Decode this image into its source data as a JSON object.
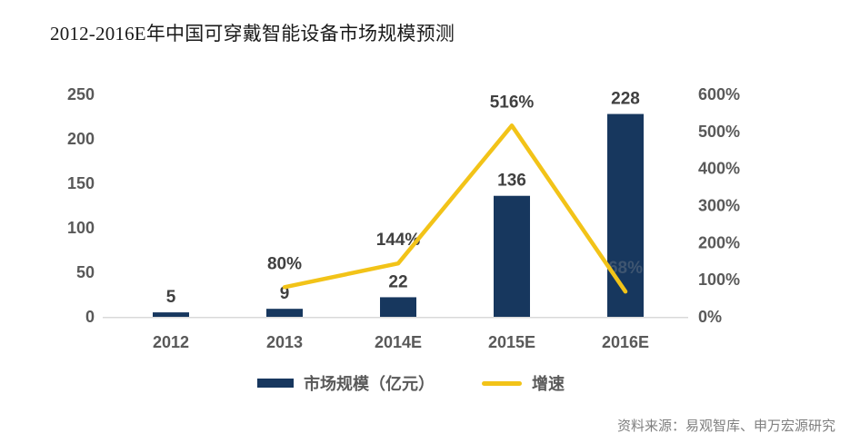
{
  "title": "2012-2016E年中国可穿戴智能设备市场规模预测",
  "source": "资料来源：易观智库、申万宏源研究",
  "legend": {
    "bar": {
      "label": "市场规模（亿元）"
    },
    "line": {
      "label": "增速"
    }
  },
  "colors": {
    "bar": "#17375E",
    "line": "#F2C318",
    "axis_text": "#595959",
    "data_label": "#404040",
    "dimmed_label": "#5f6e80",
    "baseline": "#D9D9D9",
    "title_text": "#1a1a1a",
    "source_text": "#7f7f7f"
  },
  "chart_data": {
    "type": "bar+line combo",
    "title": "2012-2016E年中国可穿戴智能设备市场规模预测",
    "categories": [
      "2012",
      "2013",
      "2014E",
      "2015E",
      "2016E"
    ],
    "series": [
      {
        "name": "市场规模（亿元）",
        "type": "bar",
        "axis": "left",
        "values": [
          5,
          9,
          22,
          136,
          228
        ],
        "labels": [
          "5",
          "9",
          "22",
          "136",
          "228"
        ]
      },
      {
        "name": "增速",
        "type": "line",
        "axis": "right",
        "values": [
          null,
          80,
          144,
          516,
          68
        ],
        "labels": [
          null,
          "80%",
          "144%",
          "516%",
          "68%"
        ]
      }
    ],
    "left_axis": {
      "ticks": [
        "0",
        "50",
        "100",
        "150",
        "200",
        "250"
      ],
      "min": 0,
      "max": 250
    },
    "right_axis": {
      "ticks": [
        "0%",
        "100%",
        "200%",
        "300%",
        "400%",
        "500%",
        "600%"
      ],
      "min": 0,
      "max": 600
    },
    "grid": "none (baseline only)",
    "legend_position": "bottom-center"
  }
}
